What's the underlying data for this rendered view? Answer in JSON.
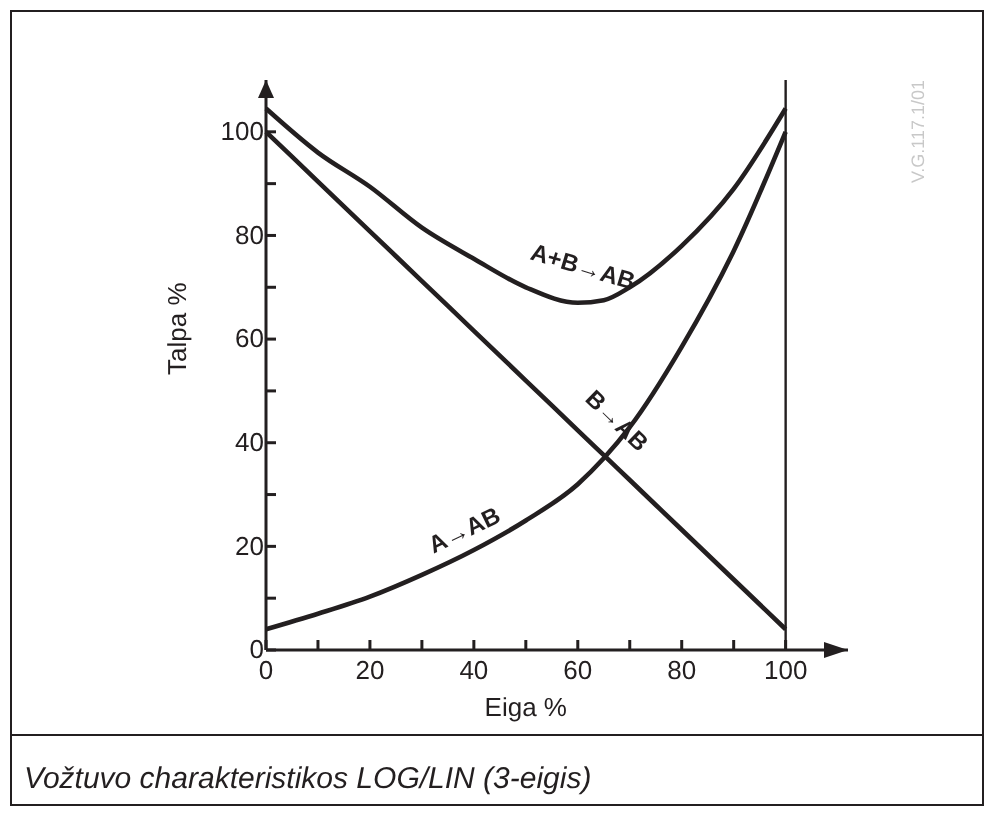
{
  "chart_data": {
    "type": "line",
    "xlabel": "Eiga %",
    "ylabel": "Talpa %",
    "xlim": [
      0,
      112
    ],
    "ylim": [
      0,
      110
    ],
    "xticks": [
      0,
      {
        "value": 10,
        "label": null
      },
      20,
      {
        "value": 30,
        "label": null
      },
      40,
      {
        "value": 50,
        "label": null
      },
      60,
      {
        "value": 70,
        "label": null
      },
      80,
      {
        "value": 90,
        "label": null
      },
      100
    ],
    "yticks": [
      0,
      {
        "value": 10,
        "label": null
      },
      20,
      {
        "value": 30,
        "label": null
      },
      40,
      {
        "value": 50,
        "label": null
      },
      60,
      {
        "value": 70,
        "label": null
      },
      80,
      {
        "value": 90,
        "label": null
      },
      100
    ],
    "x": [
      0,
      10,
      20,
      30,
      40,
      50,
      60,
      65,
      70,
      80,
      90,
      100
    ],
    "series": [
      {
        "name": "A→AB",
        "color": "#231f20",
        "values": [
          4,
          7,
          10.3,
          14.5,
          19.3,
          25,
          32,
          37,
          43,
          58.5,
          77,
          100
        ]
      },
      {
        "name": "B→AB",
        "color": "#231f20",
        "values": [
          100,
          90.4,
          80.8,
          71.2,
          61.6,
          52,
          42.4,
          37.6,
          32.8,
          23.2,
          13.6,
          4
        ]
      },
      {
        "name": "A+B→AB",
        "color": "#231f20",
        "values": [
          104.5,
          96,
          89.4,
          81.5,
          75.5,
          70,
          67,
          67.5,
          70,
          78,
          89,
          104.5
        ]
      }
    ],
    "ref_lines": [
      {
        "axis": "x",
        "value": 100,
        "color": "#231f20"
      }
    ],
    "grid": false,
    "marker": "none",
    "line_style": "solid",
    "annotations": [
      "V.G.117.1/01",
      "Vožtuvo charakteristikos LOG/LIN (3-eigis)"
    ]
  }
}
